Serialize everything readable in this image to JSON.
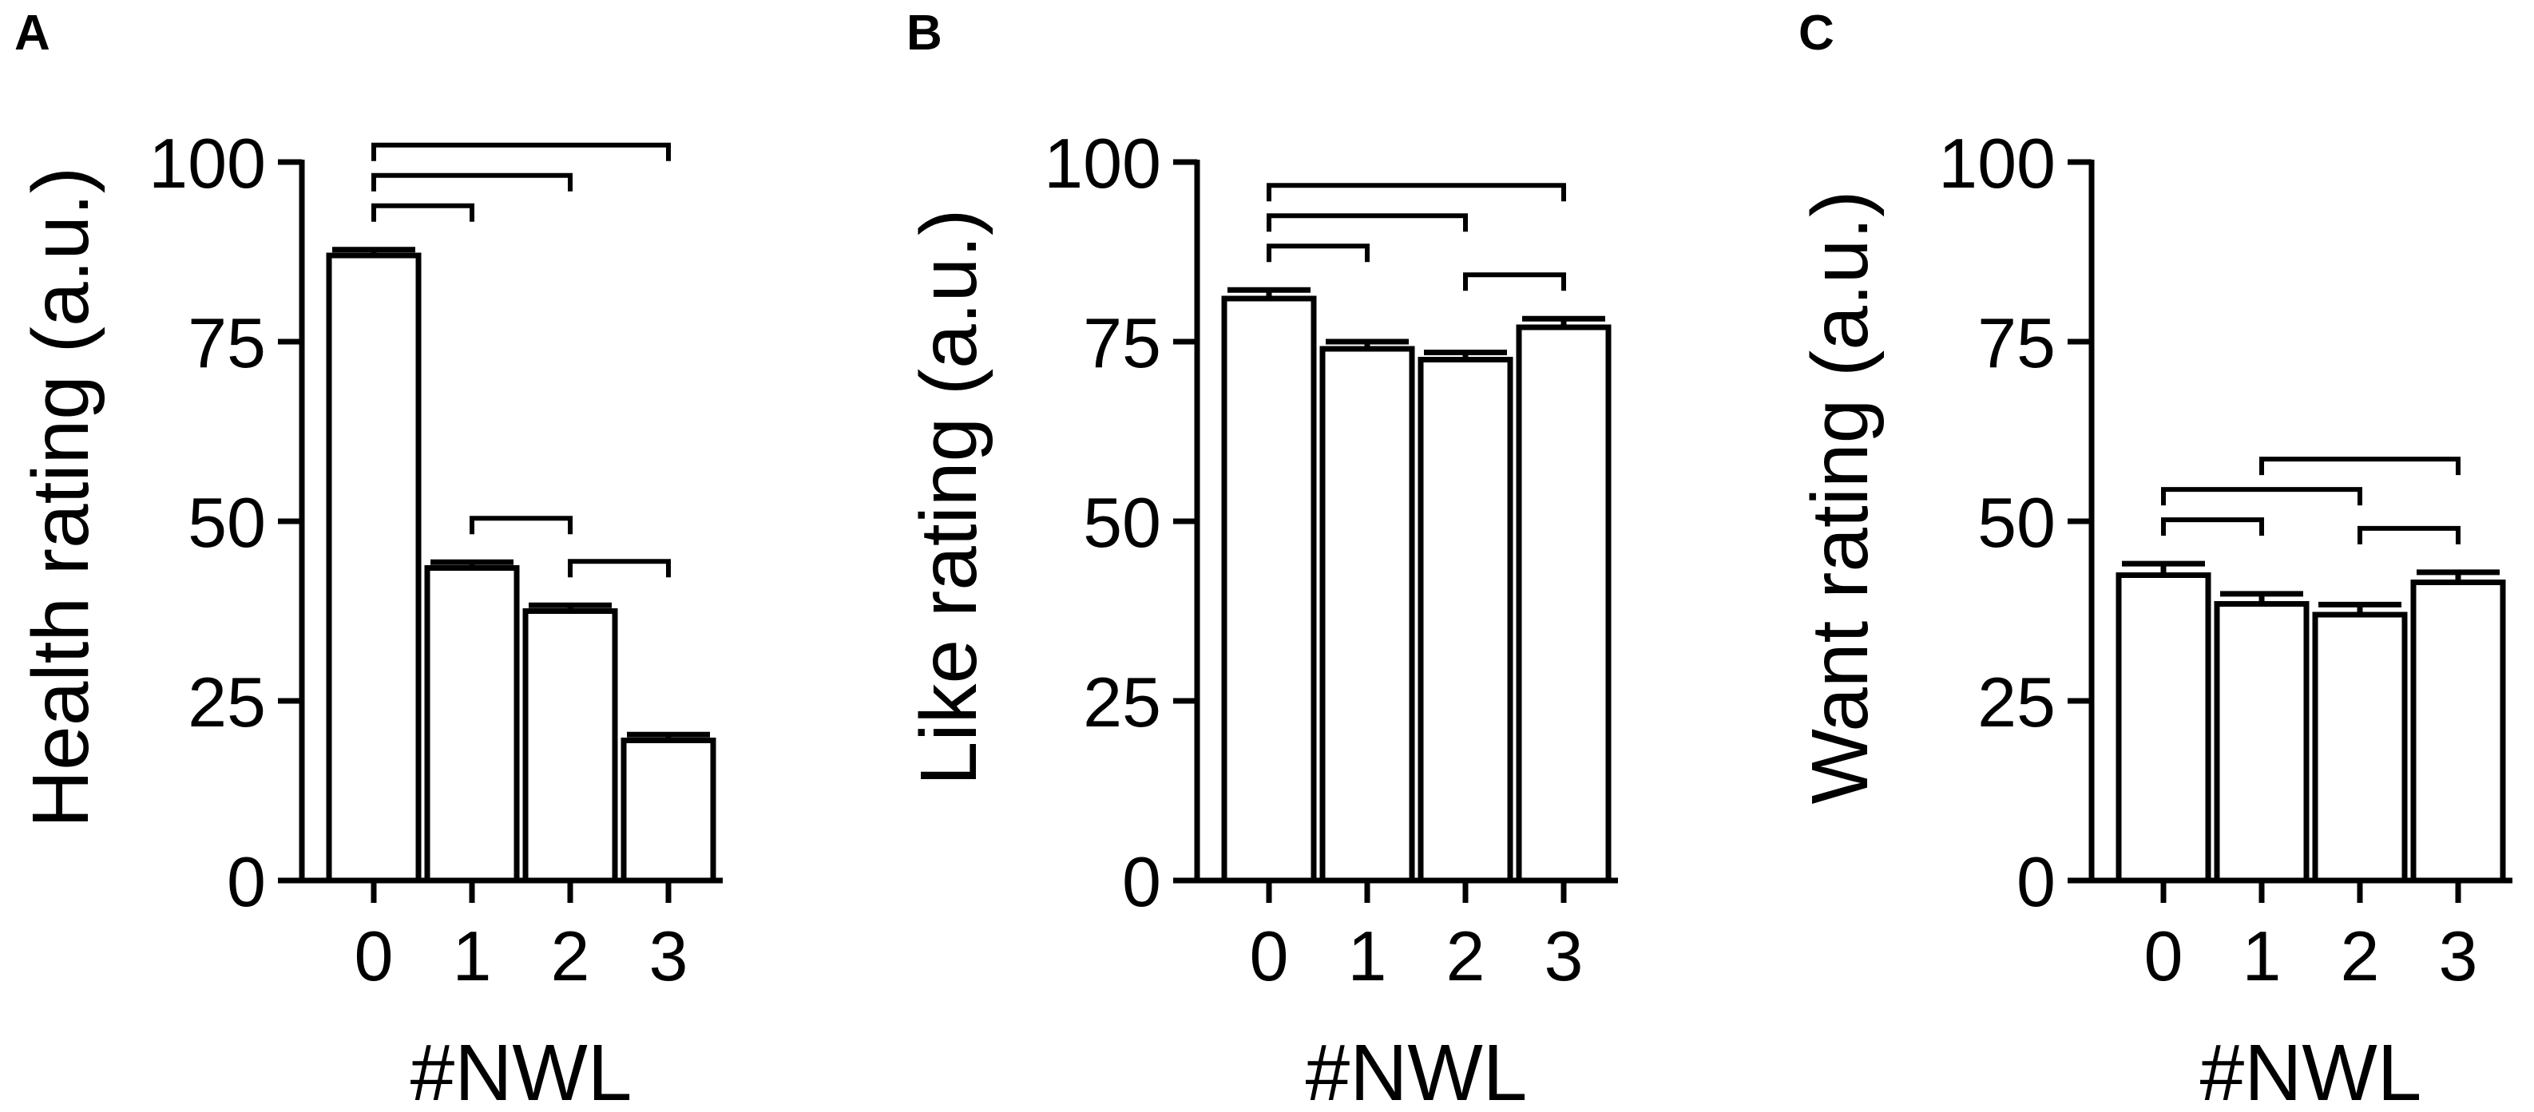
{
  "chart_data": [
    {
      "type": "bar",
      "panel": "A",
      "categories": [
        "0",
        "1",
        "2",
        "3"
      ],
      "values": [
        87,
        43.5,
        37.5,
        19.5
      ],
      "errors": [
        0.8,
        0.8,
        0.8,
        0.8
      ],
      "ylabel": "Health rating (a.u.)",
      "xlabel": "#NWL",
      "ylim": [
        0,
        100
      ],
      "yticks": [
        "0",
        "25",
        "50",
        "75",
        "100"
      ],
      "brackets": [
        [
          0,
          1
        ],
        [
          0,
          2
        ],
        [
          0,
          3
        ],
        [
          1,
          2
        ],
        [
          2,
          3
        ]
      ]
    },
    {
      "type": "bar",
      "panel": "B",
      "categories": [
        "0",
        "1",
        "2",
        "3"
      ],
      "values": [
        81,
        74,
        72.5,
        77
      ],
      "errors": [
        1.2,
        1.0,
        1.0,
        1.2
      ],
      "ylabel": "Like rating (a.u.)",
      "xlabel": "#NWL",
      "ylim": [
        0,
        100
      ],
      "yticks": [
        "0",
        "25",
        "50",
        "75",
        "100"
      ],
      "brackets": [
        [
          0,
          1
        ],
        [
          0,
          2
        ],
        [
          0,
          3
        ],
        [
          2,
          3
        ]
      ]
    },
    {
      "type": "bar",
      "panel": "C",
      "categories": [
        "0",
        "1",
        "2",
        "3"
      ],
      "values": [
        42.5,
        38.5,
        37,
        41.5
      ],
      "errors": [
        1.6,
        1.4,
        1.4,
        1.4
      ],
      "ylabel": "Want rating (a.u.)",
      "xlabel": "#NWL",
      "ylim": [
        0,
        100
      ],
      "yticks": [
        "0",
        "25",
        "50",
        "75",
        "100"
      ],
      "brackets": [
        [
          0,
          1
        ],
        [
          0,
          2
        ],
        [
          1,
          3
        ],
        [
          2,
          3
        ]
      ]
    }
  ]
}
